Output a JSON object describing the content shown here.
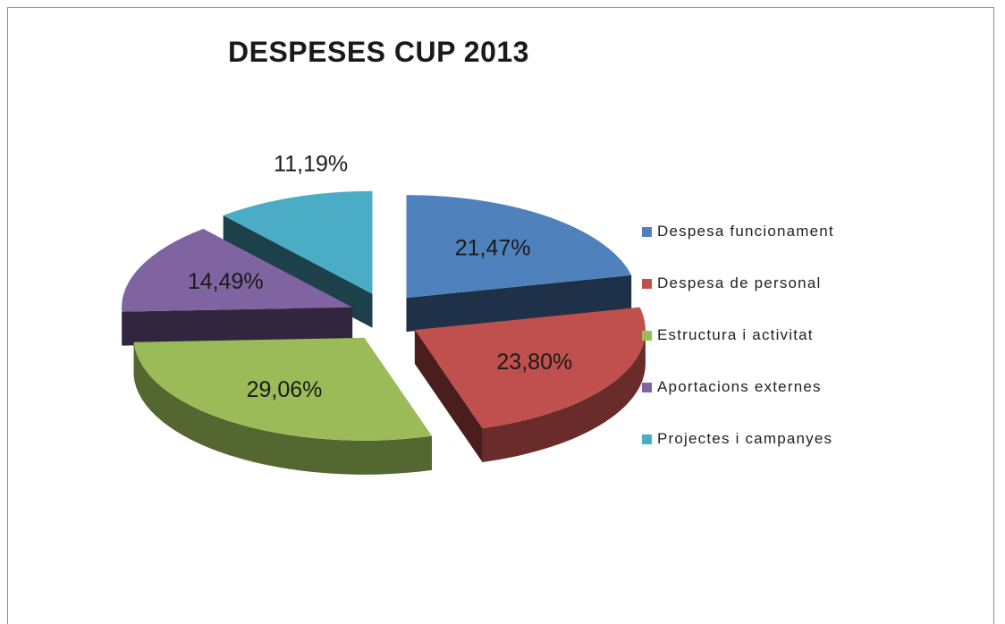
{
  "chart_data": {
    "type": "pie",
    "title": "DESPESES CUP 2013",
    "categories": [
      "Despesa funcionament",
      "Despesa de personal",
      "Estructura i activitat",
      "Aportacions externes",
      "Projectes i campanyes"
    ],
    "values": [
      21.47,
      23.8,
      29.06,
      14.49,
      11.19
    ],
    "value_labels": [
      "21,47%",
      "23,80%",
      "29,06%",
      "14,49%",
      "11,19%"
    ],
    "colors": [
      "#4f81bd",
      "#c0504d",
      "#9bbb59",
      "#8064a2",
      "#4bacc6"
    ],
    "legend_position": "right",
    "exploded": true,
    "style": "3d"
  }
}
